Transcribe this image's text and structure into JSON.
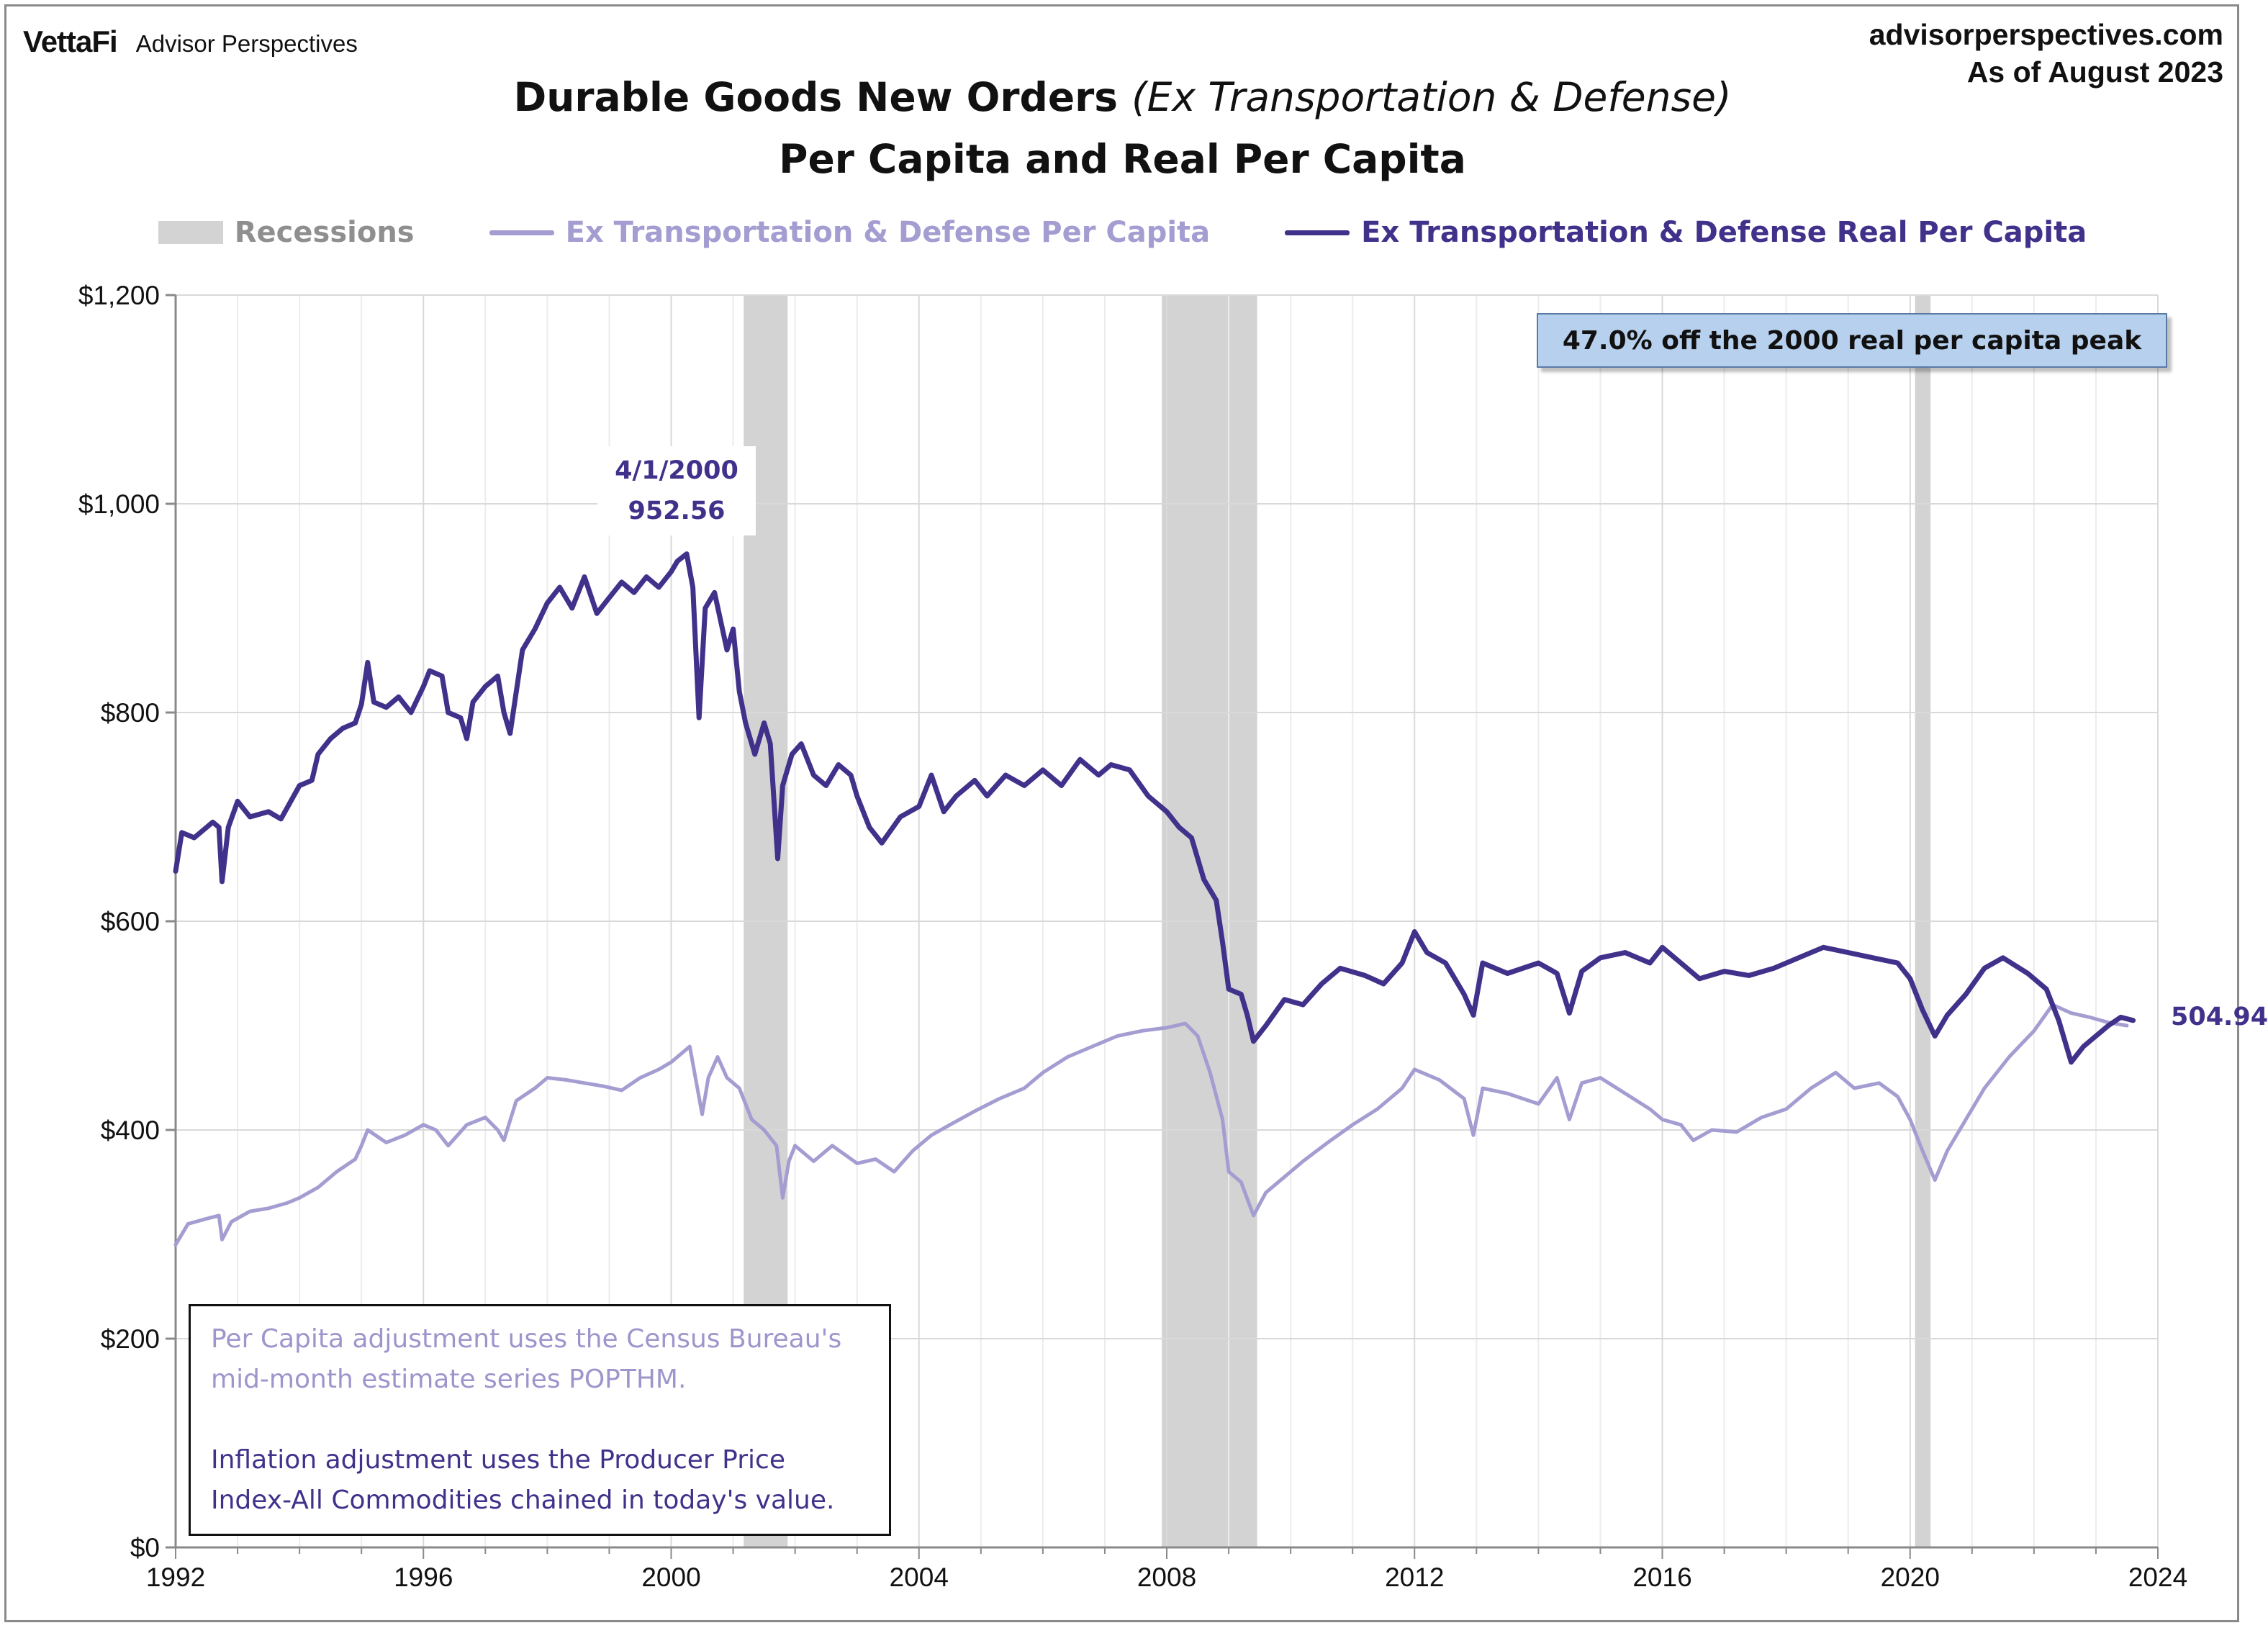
{
  "header": {
    "logo": "VettaFi",
    "brand_sub": "Advisor Perspectives",
    "site": "advisorperspectives.com",
    "as_of": "As of August 2023"
  },
  "title": {
    "line1_main": "Durable Goods New Orders",
    "line1_italic": "(Ex Transportation & Defense)",
    "line2": "Per Capita and Real Per Capita"
  },
  "colors": {
    "recession": "#d3d3d3",
    "nominal": "#a39dd1",
    "real": "#41318b",
    "grid": "#d9d9d9"
  },
  "annotations": {
    "callout": "47.0% off the 2000 real per capita peak",
    "peak_date": "4/1/2000",
    "peak_value": "952.56",
    "end_value": "504.94",
    "note1_line1": "Per Capita adjustment uses the Census Bureau's",
    "note1_line2": "mid-month estimate series POPTHM.",
    "note2_line1": "Inflation adjustment uses the Producer Price",
    "note2_line2": "Index-All Commodities chained in today's value."
  },
  "chart_data": {
    "type": "line",
    "title": "Durable Goods New Orders (Ex Transportation & Defense) Per Capita and Real Per Capita",
    "xlim": [
      1992,
      2024
    ],
    "ylim": [
      0,
      1200
    ],
    "x_ticks": [
      1992,
      1996,
      2000,
      2004,
      2008,
      2012,
      2016,
      2020,
      2024
    ],
    "y_ticks": [
      0,
      200,
      400,
      600,
      800,
      1000,
      1200
    ],
    "y_tick_labels": [
      "$0",
      "$200",
      "$400",
      "$600",
      "$800",
      "$1,000",
      "$1,200"
    ],
    "grid": true,
    "legend_position": "top",
    "recessions": [
      {
        "name": "Recessions",
        "start": 2001.17,
        "end": 2001.88
      },
      {
        "name": "Recessions",
        "start": 2007.92,
        "end": 2009.46
      },
      {
        "name": "Recessions",
        "start": 2020.08,
        "end": 2020.33
      }
    ],
    "series": [
      {
        "name": "Ex Transportation & Defense Per Capita",
        "color": "#a39dd1",
        "points": [
          [
            1992.0,
            290
          ],
          [
            1992.2,
            310
          ],
          [
            1992.5,
            315
          ],
          [
            1992.7,
            318
          ],
          [
            1992.75,
            295
          ],
          [
            1992.9,
            312
          ],
          [
            1993.2,
            322
          ],
          [
            1993.5,
            325
          ],
          [
            1993.8,
            330
          ],
          [
            1994.0,
            335
          ],
          [
            1994.3,
            345
          ],
          [
            1994.6,
            360
          ],
          [
            1994.9,
            372
          ],
          [
            1995.0,
            385
          ],
          [
            1995.1,
            400
          ],
          [
            1995.4,
            388
          ],
          [
            1995.7,
            395
          ],
          [
            1996.0,
            405
          ],
          [
            1996.2,
            400
          ],
          [
            1996.4,
            385
          ],
          [
            1996.7,
            405
          ],
          [
            1997.0,
            412
          ],
          [
            1997.2,
            400
          ],
          [
            1997.3,
            390
          ],
          [
            1997.5,
            428
          ],
          [
            1997.8,
            440
          ],
          [
            1998.0,
            450
          ],
          [
            1998.3,
            448
          ],
          [
            1998.6,
            445
          ],
          [
            1998.9,
            442
          ],
          [
            1999.2,
            438
          ],
          [
            1999.5,
            450
          ],
          [
            1999.8,
            458
          ],
          [
            2000.0,
            465
          ],
          [
            2000.2,
            475
          ],
          [
            2000.3,
            480
          ],
          [
            2000.5,
            415
          ],
          [
            2000.6,
            450
          ],
          [
            2000.75,
            470
          ],
          [
            2000.9,
            450
          ],
          [
            2001.1,
            440
          ],
          [
            2001.3,
            410
          ],
          [
            2001.5,
            400
          ],
          [
            2001.7,
            385
          ],
          [
            2001.8,
            335
          ],
          [
            2001.9,
            370
          ],
          [
            2002.0,
            385
          ],
          [
            2002.3,
            370
          ],
          [
            2002.6,
            385
          ],
          [
            2003.0,
            368
          ],
          [
            2003.3,
            372
          ],
          [
            2003.6,
            360
          ],
          [
            2003.9,
            380
          ],
          [
            2004.2,
            395
          ],
          [
            2004.5,
            405
          ],
          [
            2004.9,
            418
          ],
          [
            2005.3,
            430
          ],
          [
            2005.7,
            440
          ],
          [
            2006.0,
            455
          ],
          [
            2006.4,
            470
          ],
          [
            2006.8,
            480
          ],
          [
            2007.2,
            490
          ],
          [
            2007.6,
            495
          ],
          [
            2008.0,
            498
          ],
          [
            2008.3,
            502
          ],
          [
            2008.5,
            490
          ],
          [
            2008.7,
            455
          ],
          [
            2008.9,
            410
          ],
          [
            2009.0,
            360
          ],
          [
            2009.2,
            350
          ],
          [
            2009.4,
            318
          ],
          [
            2009.6,
            340
          ],
          [
            2009.9,
            355
          ],
          [
            2010.2,
            370
          ],
          [
            2010.6,
            388
          ],
          [
            2011.0,
            405
          ],
          [
            2011.4,
            420
          ],
          [
            2011.8,
            440
          ],
          [
            2012.0,
            458
          ],
          [
            2012.4,
            448
          ],
          [
            2012.8,
            430
          ],
          [
            2012.95,
            395
          ],
          [
            2013.1,
            440
          ],
          [
            2013.5,
            435
          ],
          [
            2014.0,
            425
          ],
          [
            2014.3,
            450
          ],
          [
            2014.5,
            410
          ],
          [
            2014.7,
            445
          ],
          [
            2015.0,
            450
          ],
          [
            2015.4,
            435
          ],
          [
            2015.8,
            420
          ],
          [
            2016.0,
            410
          ],
          [
            2016.3,
            405
          ],
          [
            2016.5,
            390
          ],
          [
            2016.8,
            400
          ],
          [
            2017.2,
            398
          ],
          [
            2017.6,
            412
          ],
          [
            2018.0,
            420
          ],
          [
            2018.4,
            440
          ],
          [
            2018.8,
            455
          ],
          [
            2019.1,
            440
          ],
          [
            2019.5,
            445
          ],
          [
            2019.8,
            432
          ],
          [
            2020.0,
            410
          ],
          [
            2020.2,
            380
          ],
          [
            2020.4,
            352
          ],
          [
            2020.6,
            380
          ],
          [
            2020.9,
            410
          ],
          [
            2021.2,
            440
          ],
          [
            2021.6,
            470
          ],
          [
            2022.0,
            495
          ],
          [
            2022.3,
            520
          ],
          [
            2022.6,
            512
          ],
          [
            2022.9,
            508
          ],
          [
            2023.2,
            503
          ],
          [
            2023.5,
            500
          ]
        ]
      },
      {
        "name": "Ex Transportation & Defense Real Per Capita",
        "color": "#41318b",
        "points": [
          [
            1992.0,
            648
          ],
          [
            1992.1,
            685
          ],
          [
            1992.3,
            680
          ],
          [
            1992.6,
            695
          ],
          [
            1992.7,
            690
          ],
          [
            1992.75,
            638
          ],
          [
            1992.85,
            690
          ],
          [
            1993.0,
            715
          ],
          [
            1993.2,
            700
          ],
          [
            1993.5,
            705
          ],
          [
            1993.7,
            698
          ],
          [
            1994.0,
            730
          ],
          [
            1994.2,
            735
          ],
          [
            1994.3,
            760
          ],
          [
            1994.5,
            775
          ],
          [
            1994.7,
            785
          ],
          [
            1994.9,
            790
          ],
          [
            1995.0,
            808
          ],
          [
            1995.1,
            848
          ],
          [
            1995.2,
            810
          ],
          [
            1995.4,
            805
          ],
          [
            1995.6,
            815
          ],
          [
            1995.8,
            800
          ],
          [
            1996.0,
            825
          ],
          [
            1996.1,
            840
          ],
          [
            1996.3,
            835
          ],
          [
            1996.4,
            800
          ],
          [
            1996.6,
            795
          ],
          [
            1996.7,
            775
          ],
          [
            1996.8,
            810
          ],
          [
            1997.0,
            825
          ],
          [
            1997.2,
            835
          ],
          [
            1997.3,
            800
          ],
          [
            1997.4,
            780
          ],
          [
            1997.6,
            860
          ],
          [
            1997.8,
            880
          ],
          [
            1998.0,
            905
          ],
          [
            1998.2,
            920
          ],
          [
            1998.4,
            900
          ],
          [
            1998.6,
            930
          ],
          [
            1998.8,
            895
          ],
          [
            1999.0,
            910
          ],
          [
            1999.2,
            925
          ],
          [
            1999.4,
            915
          ],
          [
            1999.6,
            930
          ],
          [
            1999.8,
            920
          ],
          [
            2000.0,
            935
          ],
          [
            2000.1,
            945
          ],
          [
            2000.25,
            952
          ],
          [
            2000.35,
            920
          ],
          [
            2000.45,
            795
          ],
          [
            2000.55,
            900
          ],
          [
            2000.7,
            915
          ],
          [
            2000.9,
            860
          ],
          [
            2001.0,
            880
          ],
          [
            2001.1,
            820
          ],
          [
            2001.2,
            790
          ],
          [
            2001.35,
            760
          ],
          [
            2001.5,
            790
          ],
          [
            2001.6,
            770
          ],
          [
            2001.72,
            660
          ],
          [
            2001.8,
            730
          ],
          [
            2001.95,
            760
          ],
          [
            2002.1,
            770
          ],
          [
            2002.3,
            740
          ],
          [
            2002.5,
            730
          ],
          [
            2002.7,
            750
          ],
          [
            2002.9,
            740
          ],
          [
            2003.0,
            720
          ],
          [
            2003.2,
            690
          ],
          [
            2003.4,
            675
          ],
          [
            2003.7,
            700
          ],
          [
            2004.0,
            710
          ],
          [
            2004.2,
            740
          ],
          [
            2004.4,
            705
          ],
          [
            2004.6,
            720
          ],
          [
            2004.9,
            735
          ],
          [
            2005.1,
            720
          ],
          [
            2005.4,
            740
          ],
          [
            2005.7,
            730
          ],
          [
            2006.0,
            745
          ],
          [
            2006.3,
            730
          ],
          [
            2006.6,
            755
          ],
          [
            2006.9,
            740
          ],
          [
            2007.1,
            750
          ],
          [
            2007.4,
            745
          ],
          [
            2007.7,
            720
          ],
          [
            2008.0,
            705
          ],
          [
            2008.2,
            690
          ],
          [
            2008.4,
            680
          ],
          [
            2008.6,
            640
          ],
          [
            2008.8,
            620
          ],
          [
            2008.9,
            580
          ],
          [
            2009.0,
            535
          ],
          [
            2009.2,
            530
          ],
          [
            2009.3,
            510
          ],
          [
            2009.4,
            485
          ],
          [
            2009.6,
            500
          ],
          [
            2009.9,
            525
          ],
          [
            2010.2,
            520
          ],
          [
            2010.5,
            540
          ],
          [
            2010.8,
            555
          ],
          [
            2011.2,
            548
          ],
          [
            2011.5,
            540
          ],
          [
            2011.8,
            560
          ],
          [
            2012.0,
            590
          ],
          [
            2012.2,
            570
          ],
          [
            2012.5,
            560
          ],
          [
            2012.8,
            530
          ],
          [
            2012.95,
            510
          ],
          [
            2013.1,
            560
          ],
          [
            2013.5,
            550
          ],
          [
            2014.0,
            560
          ],
          [
            2014.3,
            550
          ],
          [
            2014.5,
            512
          ],
          [
            2014.7,
            552
          ],
          [
            2015.0,
            565
          ],
          [
            2015.4,
            570
          ],
          [
            2015.8,
            560
          ],
          [
            2016.0,
            575
          ],
          [
            2016.3,
            560
          ],
          [
            2016.6,
            545
          ],
          [
            2017.0,
            552
          ],
          [
            2017.4,
            548
          ],
          [
            2017.8,
            555
          ],
          [
            2018.2,
            565
          ],
          [
            2018.6,
            575
          ],
          [
            2019.0,
            570
          ],
          [
            2019.4,
            565
          ],
          [
            2019.8,
            560
          ],
          [
            2020.0,
            545
          ],
          [
            2020.2,
            515
          ],
          [
            2020.4,
            490
          ],
          [
            2020.6,
            510
          ],
          [
            2020.9,
            530
          ],
          [
            2021.2,
            555
          ],
          [
            2021.5,
            565
          ],
          [
            2021.9,
            550
          ],
          [
            2022.2,
            535
          ],
          [
            2022.4,
            505
          ],
          [
            2022.6,
            465
          ],
          [
            2022.8,
            480
          ],
          [
            2023.0,
            490
          ],
          [
            2023.2,
            500
          ],
          [
            2023.4,
            508
          ],
          [
            2023.6,
            505
          ]
        ]
      }
    ]
  }
}
